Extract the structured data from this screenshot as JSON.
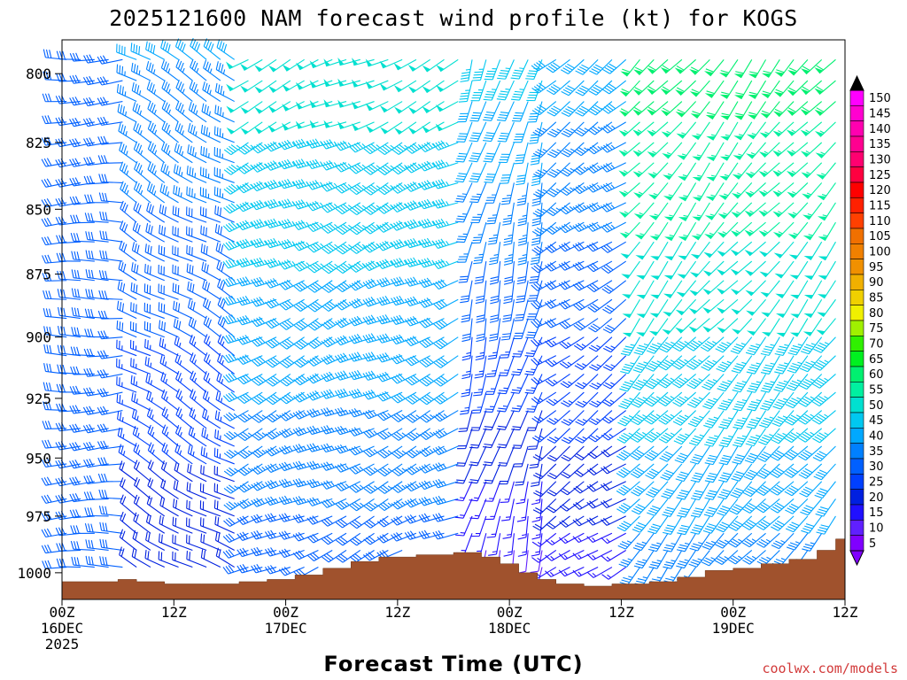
{
  "chart_data": {
    "type": "wind_barb_time_height",
    "title": "2025121600 NAM forecast wind profile (kt) for KOGS",
    "xlabel": "Forecast Time (UTC)",
    "ylabel": "",
    "credit": "coolwx.com/models",
    "x_range_hours": [
      0,
      84
    ],
    "y_range_hpa": [
      788,
      1012
    ],
    "x_ticks": [
      {
        "hour": 0,
        "lines": [
          "00Z",
          "16DEC",
          "2025"
        ]
      },
      {
        "hour": 12,
        "lines": [
          "12Z"
        ]
      },
      {
        "hour": 24,
        "lines": [
          "00Z",
          "17DEC"
        ]
      },
      {
        "hour": 36,
        "lines": [
          "12Z"
        ]
      },
      {
        "hour": 48,
        "lines": [
          "00Z",
          "18DEC"
        ]
      },
      {
        "hour": 60,
        "lines": [
          "12Z"
        ]
      },
      {
        "hour": 72,
        "lines": [
          "00Z",
          "19DEC"
        ]
      },
      {
        "hour": 84,
        "lines": [
          "12Z"
        ]
      }
    ],
    "y_ticks": [
      800,
      825,
      850,
      875,
      900,
      925,
      950,
      975,
      1000
    ],
    "colorbar": {
      "units": "kt",
      "levels": [
        5,
        10,
        15,
        20,
        25,
        30,
        35,
        40,
        45,
        50,
        55,
        60,
        65,
        70,
        75,
        80,
        85,
        90,
        95,
        100,
        105,
        110,
        115,
        120,
        125,
        130,
        135,
        140,
        145,
        150
      ],
      "colors": [
        "#8000ff",
        "#6020ff",
        "#2010ff",
        "#0020e0",
        "#0040ff",
        "#0060ff",
        "#0080ff",
        "#00a8ff",
        "#00c8f0",
        "#00e0d0",
        "#00f0a0",
        "#00f070",
        "#00f020",
        "#30f000",
        "#a0f000",
        "#f0f000",
        "#f0d000",
        "#f0b000",
        "#f09000",
        "#f08000",
        "#f07000",
        "#ff4000",
        "#ff2000",
        "#ff0000",
        "#ff0040",
        "#ff0070",
        "#ff0090",
        "#ff00b0",
        "#ff00d0",
        "#ff00ff"
      ]
    },
    "terrain_color": "#a0522d",
    "terrain_profile_hpa": [
      {
        "hour": 0,
        "p": 1004
      },
      {
        "hour": 5,
        "p": 1004
      },
      {
        "hour": 6,
        "p": 1003
      },
      {
        "hour": 8,
        "p": 1004
      },
      {
        "hour": 11,
        "p": 1005
      },
      {
        "hour": 15,
        "p": 1005
      },
      {
        "hour": 19,
        "p": 1004
      },
      {
        "hour": 22,
        "p": 1003
      },
      {
        "hour": 25,
        "p": 1001
      },
      {
        "hour": 28,
        "p": 998
      },
      {
        "hour": 31,
        "p": 995
      },
      {
        "hour": 34,
        "p": 993
      },
      {
        "hour": 38,
        "p": 992
      },
      {
        "hour": 42,
        "p": 991
      },
      {
        "hour": 45,
        "p": 993
      },
      {
        "hour": 47,
        "p": 996
      },
      {
        "hour": 49,
        "p": 1000
      },
      {
        "hour": 51,
        "p": 1003
      },
      {
        "hour": 53,
        "p": 1005
      },
      {
        "hour": 56,
        "p": 1006
      },
      {
        "hour": 59,
        "p": 1005
      },
      {
        "hour": 63,
        "p": 1004
      },
      {
        "hour": 66,
        "p": 1002
      },
      {
        "hour": 69,
        "p": 999
      },
      {
        "hour": 72,
        "p": 998
      },
      {
        "hour": 75,
        "p": 996
      },
      {
        "hour": 78,
        "p": 994
      },
      {
        "hour": 81,
        "p": 990
      },
      {
        "hour": 83,
        "p": 985
      },
      {
        "hour": 84,
        "p": 984
      }
    ],
    "wind_regimes": [
      {
        "hours": [
          0,
          8
        ],
        "dir_deg": 268,
        "speed_kt": [
          28,
          32
        ]
      },
      {
        "hours": [
          8,
          20
        ],
        "dir_deg": 300,
        "speed_kt": [
          18,
          38
        ]
      },
      {
        "hours": [
          20,
          44
        ],
        "dir_deg": 245,
        "speed_kt": [
          30,
          50
        ]
      },
      {
        "hours": [
          44,
          52
        ],
        "dir_deg": 195,
        "speed_kt": [
          10,
          45
        ]
      },
      {
        "hours": [
          52,
          62
        ],
        "dir_deg": 235,
        "speed_kt": [
          15,
          40
        ]
      },
      {
        "hours": [
          62,
          84
        ],
        "dir_deg": 220,
        "speed_kt": [
          35,
          60
        ]
      }
    ]
  }
}
